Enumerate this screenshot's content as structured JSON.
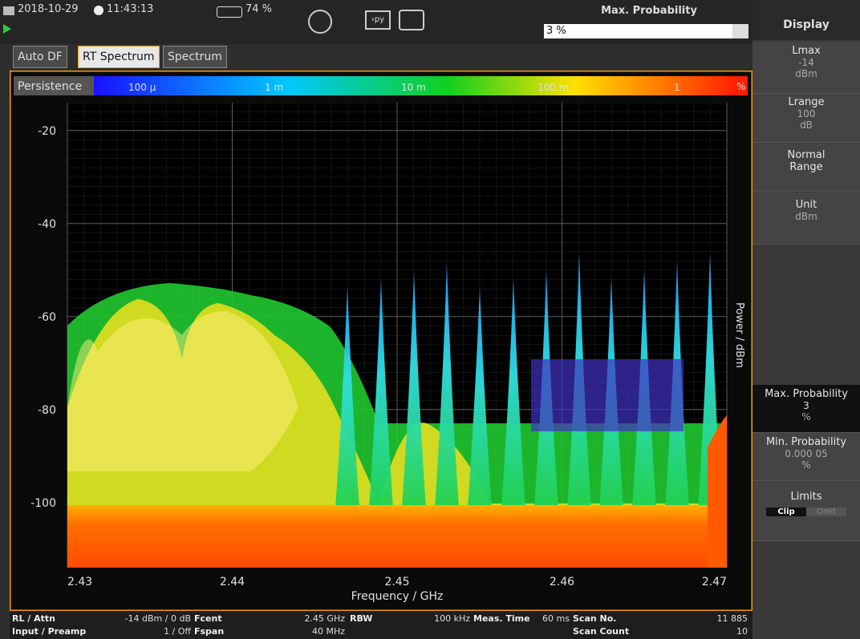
{
  "status_bar": {
    "date": "2018-10-29",
    "time": "11:43:13",
    "battery": "74 %"
  },
  "probability_field": {
    "label": "Max. Probability",
    "value": "3 %"
  },
  "tabs": [
    "Auto DF",
    "RT Spectrum",
    "Spectrum"
  ],
  "persistence_scale": {
    "label": "Persistence",
    "labels": [
      "100 µ",
      "1 m",
      "10 m",
      "100 m",
      "1"
    ],
    "unit": "%"
  },
  "chart_data": {
    "type": "persistence-spectrum",
    "xlabel": "Frequency / GHz",
    "ylabel": "Power / dBm",
    "xlim": [
      2.43,
      2.47
    ],
    "xticks": [
      2.43,
      2.44,
      2.45,
      2.46,
      2.47
    ],
    "ylim": [
      -114,
      -14
    ],
    "yticks": [
      -20,
      -40,
      -60,
      -80,
      -100
    ],
    "grid": true
  },
  "side_panel": {
    "title": "Display",
    "buttons": [
      {
        "label": "Lmax",
        "value": "-14",
        "unit": "dBm"
      },
      {
        "label": "Lrange",
        "value": "100",
        "unit": "dB"
      },
      {
        "label": "Normal Range"
      },
      {
        "label": "Unit",
        "value": "dBm"
      },
      {
        "label": "Max. Probability",
        "value": "3",
        "unit": "%"
      },
      {
        "label": "Min. Probability",
        "value": "0.000 05",
        "unit": "%"
      },
      {
        "label": "Limits",
        "options": [
          "Clip",
          "Omit"
        ]
      }
    ]
  },
  "info_bar": [
    {
      "label": "RL / Attn",
      "value": "-14 dBm / 0 dB"
    },
    {
      "label": "Input / Preamp",
      "value": "1 / Off"
    },
    {
      "label": "Fcent",
      "value": "2.45 GHz"
    },
    {
      "label": "Fspan",
      "value": "40 MHz"
    },
    {
      "label": "RBW",
      "value": "100 kHz"
    },
    {
      "label": "Meas. Time",
      "value": "60 ms"
    },
    {
      "label": "Scan No.",
      "value": "11 885"
    },
    {
      "label": "Scan Count",
      "value": "10"
    }
  ]
}
